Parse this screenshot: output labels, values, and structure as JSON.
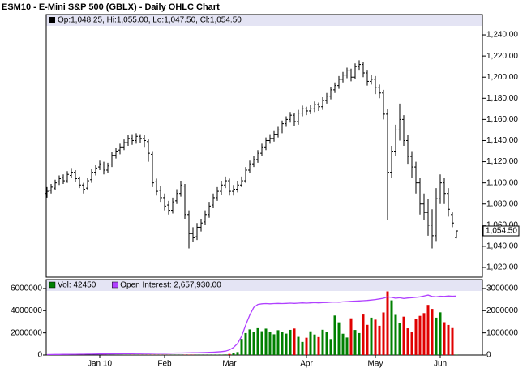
{
  "chart_data": [
    {
      "type": "ohlc",
      "title": "ESM10 - E-Mini S&P 500 (GBLX) - Daily OHLC Chart",
      "header_text": "Op:1,048.25, Hi:1,055.00, Lo:1,047.50, Cl:1,054.50",
      "last_value_label": "1,054.50",
      "color": "#000000",
      "xlim": [
        -0.2,
        107.4
      ],
      "ylim": [
        1010.8,
        1259.2
      ],
      "yticks": [
        {
          "value": 1020,
          "label": "1,020.00"
        },
        {
          "value": 1040,
          "label": "1,040.00"
        },
        {
          "value": 1060,
          "label": "1,060.00"
        },
        {
          "value": 1080,
          "label": "1,080.00"
        },
        {
          "value": 1100,
          "label": "1,100.00"
        },
        {
          "value": 1120,
          "label": "1,120.00"
        },
        {
          "value": 1140,
          "label": "1,140.00"
        },
        {
          "value": 1160,
          "label": "1,160.00"
        },
        {
          "value": 1180,
          "label": "1,180.00"
        },
        {
          "value": 1200,
          "label": "1,200.00"
        },
        {
          "value": 1220,
          "label": "1,220.00"
        },
        {
          "value": 1240,
          "label": "1,240.00"
        }
      ],
      "ohlc": [
        [
          1090,
          1096,
          1086,
          1092
        ],
        [
          1093,
          1099,
          1090,
          1096
        ],
        [
          1095,
          1103,
          1093,
          1100
        ],
        [
          1101,
          1107,
          1098,
          1104
        ],
        [
          1105,
          1108,
          1099,
          1102
        ],
        [
          1102,
          1111,
          1100,
          1108
        ],
        [
          1107,
          1114,
          1105,
          1110
        ],
        [
          1110,
          1112,
          1101,
          1104
        ],
        [
          1104,
          1106,
          1095,
          1098
        ],
        [
          1098,
          1100,
          1090,
          1094
        ],
        [
          1095,
          1105,
          1093,
          1102
        ],
        [
          1103,
          1113,
          1100,
          1110
        ],
        [
          1110,
          1117,
          1107,
          1114
        ],
        [
          1115,
          1121,
          1112,
          1118
        ],
        [
          1117,
          1120,
          1108,
          1112
        ],
        [
          1112,
          1119,
          1109,
          1116
        ],
        [
          1117,
          1129,
          1115,
          1126
        ],
        [
          1126,
          1133,
          1123,
          1130
        ],
        [
          1131,
          1137,
          1127,
          1134
        ],
        [
          1134,
          1141,
          1131,
          1138
        ],
        [
          1138,
          1145,
          1135,
          1142
        ],
        [
          1142,
          1146,
          1136,
          1140
        ],
        [
          1140,
          1147,
          1137,
          1144
        ],
        [
          1144,
          1146,
          1138,
          1142
        ],
        [
          1142,
          1145,
          1134,
          1140
        ],
        [
          1139,
          1141,
          1120,
          1128
        ],
        [
          1127,
          1130,
          1096,
          1100
        ],
        [
          1101,
          1104,
          1088,
          1092
        ],
        [
          1093,
          1097,
          1082,
          1086
        ],
        [
          1086,
          1090,
          1074,
          1078
        ],
        [
          1079,
          1083,
          1070,
          1074
        ],
        [
          1074,
          1086,
          1071,
          1082
        ],
        [
          1083,
          1094,
          1080,
          1090
        ],
        [
          1090,
          1102,
          1087,
          1098
        ],
        [
          1097,
          1099,
          1066,
          1070
        ],
        [
          1070,
          1074,
          1038,
          1052
        ],
        [
          1052,
          1058,
          1044,
          1048
        ],
        [
          1049,
          1062,
          1046,
          1058
        ],
        [
          1058,
          1066,
          1054,
          1062
        ],
        [
          1063,
          1074,
          1060,
          1070
        ],
        [
          1070,
          1082,
          1067,
          1078
        ],
        [
          1079,
          1090,
          1076,
          1086
        ],
        [
          1086,
          1096,
          1083,
          1092
        ],
        [
          1092,
          1102,
          1089,
          1098
        ],
        [
          1098,
          1106,
          1095,
          1102
        ],
        [
          1102,
          1104,
          1088,
          1092
        ],
        [
          1092,
          1098,
          1088,
          1094
        ],
        [
          1094,
          1102,
          1091,
          1098
        ],
        [
          1098,
          1106,
          1096,
          1102
        ],
        [
          1102,
          1115,
          1100,
          1112
        ],
        [
          1112,
          1121,
          1109,
          1118
        ],
        [
          1118,
          1125,
          1115,
          1122
        ],
        [
          1122,
          1131,
          1119,
          1128
        ],
        [
          1128,
          1137,
          1125,
          1134
        ],
        [
          1134,
          1143,
          1131,
          1140
        ],
        [
          1140,
          1146,
          1137,
          1142
        ],
        [
          1142,
          1149,
          1139,
          1146
        ],
        [
          1146,
          1153,
          1143,
          1150
        ],
        [
          1150,
          1159,
          1147,
          1156
        ],
        [
          1156,
          1163,
          1153,
          1160
        ],
        [
          1160,
          1167,
          1157,
          1164
        ],
        [
          1164,
          1166,
          1154,
          1158
        ],
        [
          1158,
          1169,
          1155,
          1166
        ],
        [
          1166,
          1173,
          1163,
          1170
        ],
        [
          1170,
          1172,
          1164,
          1168
        ],
        [
          1168,
          1174,
          1165,
          1170
        ],
        [
          1170,
          1177,
          1167,
          1174
        ],
        [
          1174,
          1176,
          1168,
          1172
        ],
        [
          1172,
          1181,
          1169,
          1178
        ],
        [
          1178,
          1185,
          1175,
          1182
        ],
        [
          1182,
          1191,
          1179,
          1188
        ],
        [
          1188,
          1195,
          1185,
          1192
        ],
        [
          1192,
          1201,
          1189,
          1198
        ],
        [
          1198,
          1205,
          1195,
          1202
        ],
        [
          1202,
          1209,
          1199,
          1206
        ],
        [
          1206,
          1208,
          1196,
          1200
        ],
        [
          1200,
          1213,
          1198,
          1210
        ],
        [
          1210,
          1216,
          1207,
          1212
        ],
        [
          1212,
          1214,
          1200,
          1204
        ],
        [
          1204,
          1207,
          1192,
          1196
        ],
        [
          1196,
          1202,
          1193,
          1198
        ],
        [
          1198,
          1201,
          1184,
          1190
        ],
        [
          1190,
          1193,
          1180,
          1185
        ],
        [
          1185,
          1188,
          1160,
          1165
        ],
        [
          1165,
          1170,
          1065,
          1110
        ],
        [
          1110,
          1135,
          1105,
          1130
        ],
        [
          1130,
          1155,
          1125,
          1150
        ],
        [
          1150,
          1175,
          1140,
          1160
        ],
        [
          1160,
          1164,
          1135,
          1140
        ],
        [
          1140,
          1145,
          1118,
          1125
        ],
        [
          1125,
          1130,
          1105,
          1115
        ],
        [
          1115,
          1120,
          1090,
          1100
        ],
        [
          1100,
          1105,
          1070,
          1080
        ],
        [
          1080,
          1090,
          1065,
          1072
        ],
        [
          1072,
          1085,
          1050,
          1060
        ],
        [
          1060,
          1075,
          1038,
          1050
        ],
        [
          1050,
          1095,
          1045,
          1085
        ],
        [
          1085,
          1108,
          1080,
          1100
        ],
        [
          1100,
          1105,
          1080,
          1090
        ],
        [
          1090,
          1095,
          1068,
          1075
        ],
        [
          1070,
          1072,
          1058,
          1062
        ],
        [
          1048.25,
          1055,
          1047.5,
          1054.5
        ]
      ]
    },
    {
      "type": "volume",
      "xlim": [
        -0.2,
        107.4
      ],
      "xticks": [
        {
          "value": 13,
          "label": "Jan 10"
        },
        {
          "value": 29,
          "label": "Feb"
        },
        {
          "value": 45,
          "label": "Mar"
        },
        {
          "value": 64,
          "label": "Apr"
        },
        {
          "value": 81,
          "label": "May"
        },
        {
          "value": 97,
          "label": "Jun"
        }
      ],
      "ylim": [
        0,
        6800000
      ],
      "yticks": [
        0,
        2000000,
        4000000,
        6000000
      ],
      "y2lim": [
        0,
        3400000
      ],
      "y2ticks": [
        0,
        1000000,
        2000000,
        3000000
      ],
      "down_color": "#e00000",
      "series": [
        {
          "name": "Vol: 42450",
          "color": "#008000",
          "values": [
            3200,
            4100,
            3800,
            5200,
            4600,
            6100,
            5300,
            4800,
            7200,
            6500,
            5900,
            8100,
            7400,
            6800,
            9300,
            8600,
            7700,
            10200,
            9400,
            11800,
            10600,
            12400,
            11100,
            13900,
            12800,
            18600,
            21300,
            17800,
            19500,
            16200,
            14700,
            15900,
            17300,
            16800,
            22400,
            25100,
            19800,
            17600,
            18900,
            21200,
            23600,
            26900,
            31400,
            38700,
            52600,
            96300,
            148200,
            265400,
            1450000,
            1980000,
            2310000,
            2050000,
            2420000,
            2150000,
            2380000,
            2060000,
            1870000,
            2240000,
            2110000,
            1930000,
            2270000,
            2390000,
            1640000,
            1180000,
            1560000,
            2140000,
            1850000,
            1620000,
            2280000,
            2050000,
            1440000,
            3560000,
            2950000,
            1920000,
            1580000,
            3310000,
            2260000,
            1980000,
            3650000,
            2720000,
            3370000,
            3190000,
            2640000,
            3840000,
            5740000,
            4930000,
            3620000,
            2880000,
            3460000,
            2410000,
            2090000,
            3240000,
            3530000,
            3780000,
            4520000,
            4160000,
            3370000,
            3850000,
            2960000,
            2710000,
            2430000,
            42450
          ]
        },
        {
          "name": "Open Interest: 2,657,930.00",
          "color": "#b040ff",
          "axis": "y2",
          "values": [
            20000,
            22000,
            24000,
            26000,
            28000,
            30000,
            32000,
            34000,
            36000,
            38000,
            40000,
            42000,
            44000,
            46000,
            48000,
            50000,
            52000,
            54000,
            56000,
            58000,
            60000,
            62000,
            64000,
            66000,
            68000,
            70000,
            72000,
            75000,
            78000,
            81000,
            84000,
            87000,
            90000,
            93000,
            96000,
            99000,
            102000,
            106000,
            110000,
            115000,
            120000,
            128000,
            138000,
            152000,
            175000,
            230000,
            340000,
            520000,
            850000,
            1350000,
            1800000,
            2150000,
            2280000,
            2310000,
            2320000,
            2310000,
            2320000,
            2330000,
            2320000,
            2330000,
            2340000,
            2330000,
            2340000,
            2350000,
            2340000,
            2350000,
            2360000,
            2350000,
            2360000,
            2370000,
            2380000,
            2390000,
            2380000,
            2400000,
            2410000,
            2420000,
            2430000,
            2440000,
            2450000,
            2460000,
            2480000,
            2500000,
            2530000,
            2560000,
            2620000,
            2600000,
            2560000,
            2580000,
            2550000,
            2570000,
            2580000,
            2600000,
            2620000,
            2660000,
            2700000,
            2640000,
            2620000,
            2650000,
            2640000,
            2660000,
            2650000,
            2657930
          ]
        }
      ]
    }
  ]
}
